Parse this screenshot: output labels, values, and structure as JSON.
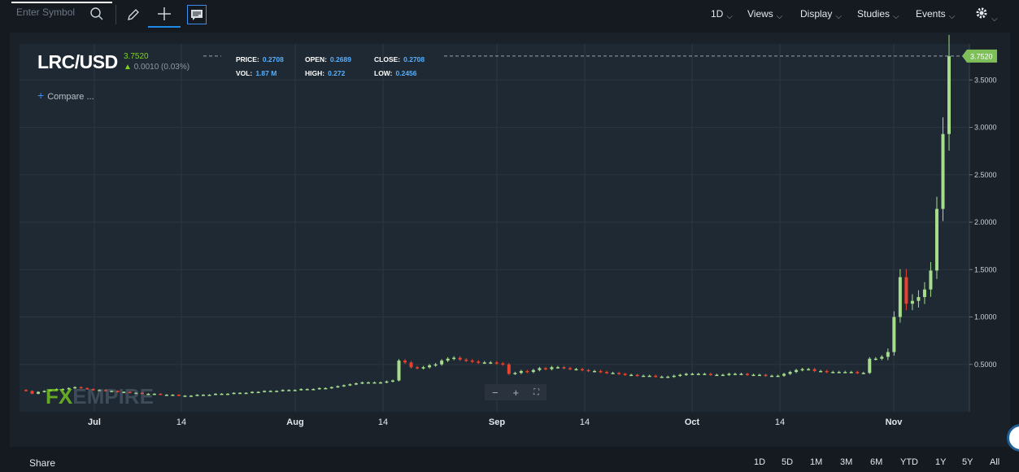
{
  "toolbar": {
    "symbol_placeholder": "Enter Symbol",
    "search_icon": "search-icon",
    "tools": [
      "pencil-icon",
      "crosshair-icon",
      "annotation-icon"
    ],
    "menus": [
      {
        "label": "1D"
      },
      {
        "label": "Views"
      },
      {
        "label": "Display"
      },
      {
        "label": "Studies"
      },
      {
        "label": "Events"
      },
      {
        "label": "settings-gear-icon"
      }
    ]
  },
  "header": {
    "symbol": "LRC/USD",
    "last": "3.7520",
    "change": "0.0010 (0.03%)",
    "stats": {
      "price_label": "PRICE:",
      "price": "0.2708",
      "open_label": "OPEN:",
      "open": "0.2689",
      "close_label": "CLOSE:",
      "close": "0.2708",
      "vol_label": "VOL:",
      "vol": "1.87 M",
      "high_label": "HIGH:",
      "high": "0.272",
      "low_label": "LOW:",
      "low": "0.2456"
    },
    "compare_label": "Compare ..."
  },
  "watermark": {
    "brand_a": "FX",
    "brand_b": "EMPIRE"
  },
  "bottom": {
    "share_label": "Share",
    "ranges": [
      "1D",
      "5D",
      "1M",
      "3M",
      "6M",
      "YTD",
      "1Y",
      "5Y",
      "All"
    ]
  },
  "colors": {
    "up": "#a6dd8c",
    "down": "#e8422e",
    "accent": "#3b8ef0",
    "price_tag": "#7fbf5a"
  },
  "chart_data": {
    "type": "candlestick",
    "x_ticks": [
      "Jul",
      "14",
      "Aug",
      "14",
      "Sep",
      "14",
      "Oct",
      "14",
      "Nov"
    ],
    "y_ticks": [
      "0.5000",
      "1.0000",
      "1.5000",
      "2.0000",
      "2.5000",
      "3.0000",
      "3.5000"
    ],
    "ylim": [
      0.0,
      3.88
    ],
    "last_price_label": "3.7520",
    "close_series": [
      0.22,
      0.19,
      0.21,
      0.22,
      0.23,
      0.24,
      0.24,
      0.25,
      0.26,
      0.25,
      0.24,
      0.23,
      0.23,
      0.22,
      0.22,
      0.21,
      0.21,
      0.2,
      0.2,
      0.19,
      0.19,
      0.19,
      0.18,
      0.18,
      0.18,
      0.17,
      0.17,
      0.17,
      0.18,
      0.18,
      0.18,
      0.19,
      0.19,
      0.19,
      0.2,
      0.2,
      0.2,
      0.21,
      0.21,
      0.22,
      0.22,
      0.22,
      0.23,
      0.23,
      0.23,
      0.24,
      0.24,
      0.24,
      0.25,
      0.25,
      0.26,
      0.27,
      0.28,
      0.29,
      0.3,
      0.31,
      0.31,
      0.31,
      0.31,
      0.32,
      0.33,
      0.54,
      0.52,
      0.47,
      0.46,
      0.47,
      0.49,
      0.5,
      0.54,
      0.56,
      0.57,
      0.55,
      0.54,
      0.53,
      0.52,
      0.52,
      0.52,
      0.51,
      0.5,
      0.4,
      0.41,
      0.43,
      0.42,
      0.44,
      0.46,
      0.45,
      0.47,
      0.47,
      0.46,
      0.45,
      0.45,
      0.44,
      0.43,
      0.43,
      0.42,
      0.41,
      0.41,
      0.4,
      0.39,
      0.39,
      0.38,
      0.38,
      0.38,
      0.37,
      0.37,
      0.37,
      0.38,
      0.39,
      0.4,
      0.4,
      0.4,
      0.4,
      0.39,
      0.39,
      0.39,
      0.4,
      0.4,
      0.4,
      0.39,
      0.39,
      0.39,
      0.38,
      0.38,
      0.38,
      0.4,
      0.42,
      0.44,
      0.45,
      0.45,
      0.43,
      0.43,
      0.42,
      0.42,
      0.42,
      0.42,
      0.42,
      0.41,
      0.41,
      0.56,
      0.56,
      0.58,
      0.63,
      1.0,
      1.42,
      1.14,
      1.17,
      1.21,
      1.29,
      1.49,
      2.14,
      2.93,
      3.75
    ]
  }
}
